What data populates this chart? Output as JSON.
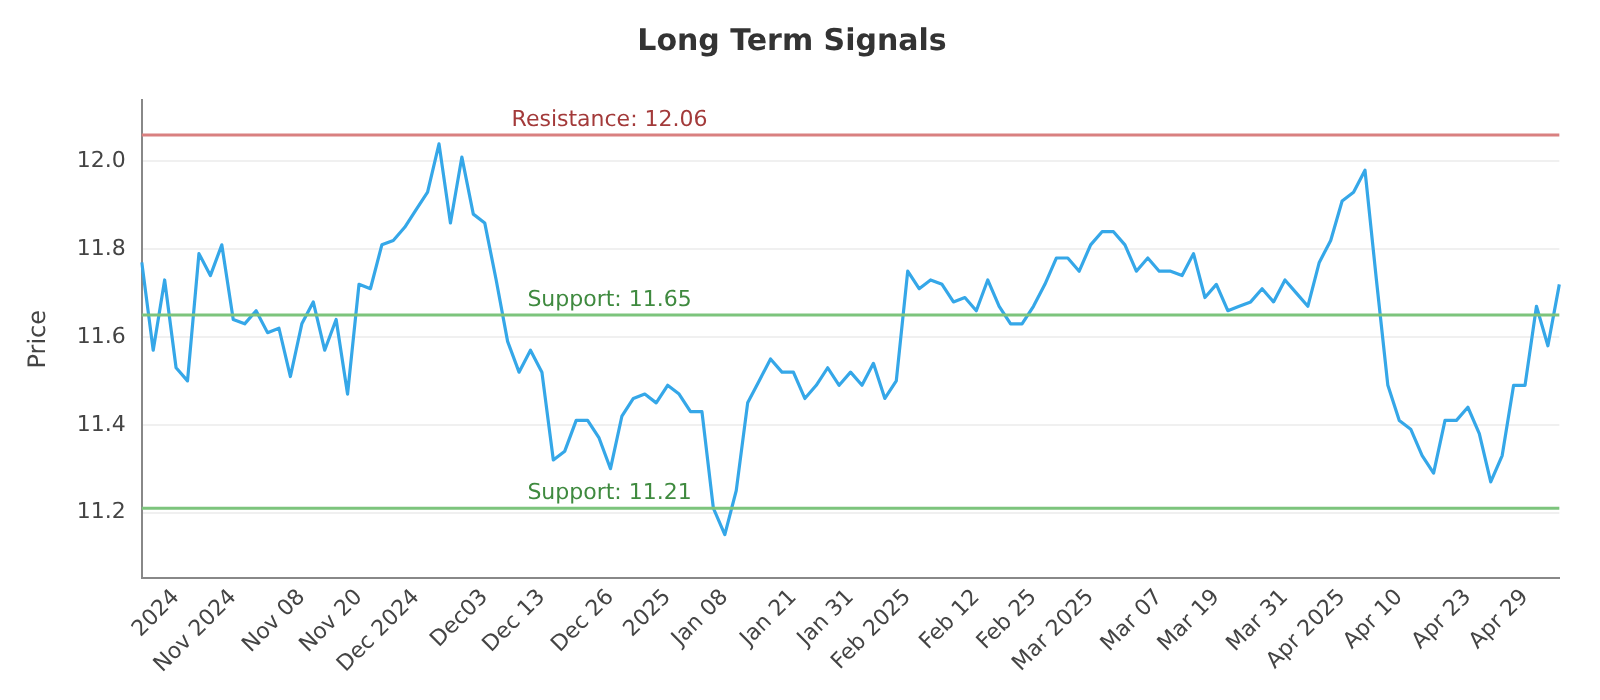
{
  "chart_data": {
    "type": "line",
    "title": "Long Term Signals",
    "ylabel": "Price",
    "categories": [
      null,
      null,
      null,
      "2024",
      null,
      null,
      null,
      null,
      "Nov 2024",
      null,
      null,
      null,
      null,
      null,
      "Nov 08",
      null,
      null,
      null,
      null,
      "Nov 20",
      null,
      null,
      null,
      null,
      "Dec 2024",
      null,
      null,
      null,
      null,
      null,
      "Dec03",
      null,
      null,
      null,
      null,
      "Dec 13",
      null,
      null,
      null,
      null,
      null,
      "Dec 26",
      null,
      null,
      null,
      null,
      "2025",
      null,
      null,
      null,
      null,
      "Jan 08",
      null,
      null,
      null,
      null,
      null,
      "Jan 21",
      null,
      null,
      null,
      null,
      "Jan 31",
      null,
      null,
      null,
      null,
      "Feb 2025",
      null,
      null,
      null,
      null,
      null,
      "Feb 12",
      null,
      null,
      null,
      null,
      "Feb 25",
      null,
      null,
      null,
      null,
      "Mar 2025",
      null,
      null,
      null,
      null,
      null,
      "Mar 07",
      null,
      null,
      null,
      null,
      "Mar 19",
      null,
      null,
      null,
      null,
      null,
      "Mar 31",
      null,
      null,
      null,
      null,
      "Apr 2025",
      null,
      null,
      null,
      null,
      "Apr 10",
      null,
      null,
      null,
      null,
      null,
      "Apr 23",
      null,
      null,
      null,
      null,
      "Apr 29",
      null,
      null,
      null
    ],
    "series": [
      {
        "color": "#35a7e8",
        "values": [
          11.77,
          11.57,
          11.73,
          11.53,
          11.5,
          11.79,
          11.74,
          11.81,
          11.64,
          11.63,
          11.66,
          11.61,
          11.62,
          11.51,
          11.63,
          11.68,
          11.57,
          11.64,
          11.47,
          11.72,
          11.71,
          11.81,
          11.82,
          11.85,
          11.89,
          11.93,
          12.04,
          11.86,
          12.01,
          11.88,
          11.86,
          11.73,
          11.59,
          11.52,
          11.57,
          11.52,
          11.32,
          11.34,
          11.41,
          11.41,
          11.37,
          11.3,
          11.42,
          11.46,
          11.47,
          11.45,
          11.49,
          11.47,
          11.43,
          11.43,
          11.21,
          11.15,
          11.25,
          11.45,
          11.5,
          11.55,
          11.52,
          11.52,
          11.46,
          11.49,
          11.53,
          11.49,
          11.52,
          11.49,
          11.54,
          11.46,
          11.5,
          11.75,
          11.71,
          11.73,
          11.72,
          11.68,
          11.69,
          11.66,
          11.73,
          11.67,
          11.63,
          11.63,
          11.67,
          11.72,
          11.78,
          11.78,
          11.75,
          11.81,
          11.84,
          11.84,
          11.81,
          11.75,
          11.78,
          11.75,
          11.75,
          11.74,
          11.79,
          11.69,
          11.72,
          11.66,
          11.67,
          11.68,
          11.71,
          11.68,
          11.73,
          11.7,
          11.67,
          11.77,
          11.82,
          11.91,
          11.93,
          11.98,
          11.73,
          11.49,
          11.41,
          11.39,
          11.33,
          11.29,
          11.41,
          11.41,
          11.44,
          11.38,
          11.27,
          11.33,
          11.49,
          11.49,
          11.67,
          11.58,
          11.72
        ]
      }
    ],
    "ylim": [
      11.05,
      12.14
    ],
    "yticks": [
      {
        "value": 11.2,
        "label": "11.2"
      },
      {
        "value": 11.4,
        "label": "11.4"
      },
      {
        "value": 11.6,
        "label": "11.6"
      },
      {
        "value": 11.8,
        "label": "11.8"
      },
      {
        "value": 12,
        "label": "12.0"
      }
    ],
    "ref_lines": [
      {
        "axis": "y",
        "value": 12.06,
        "label": "Resistance: 12.06",
        "color": "#d98080"
      },
      {
        "axis": "y",
        "value": 11.65,
        "label": "Support: 11.65",
        "color": "#7cc47c"
      },
      {
        "axis": "y",
        "value": 11.21,
        "label": "Support: 11.21",
        "color": "#7cc47c"
      }
    ],
    "grid": "y",
    "legend": false,
    "marker": "none",
    "line_style": "solid"
  }
}
